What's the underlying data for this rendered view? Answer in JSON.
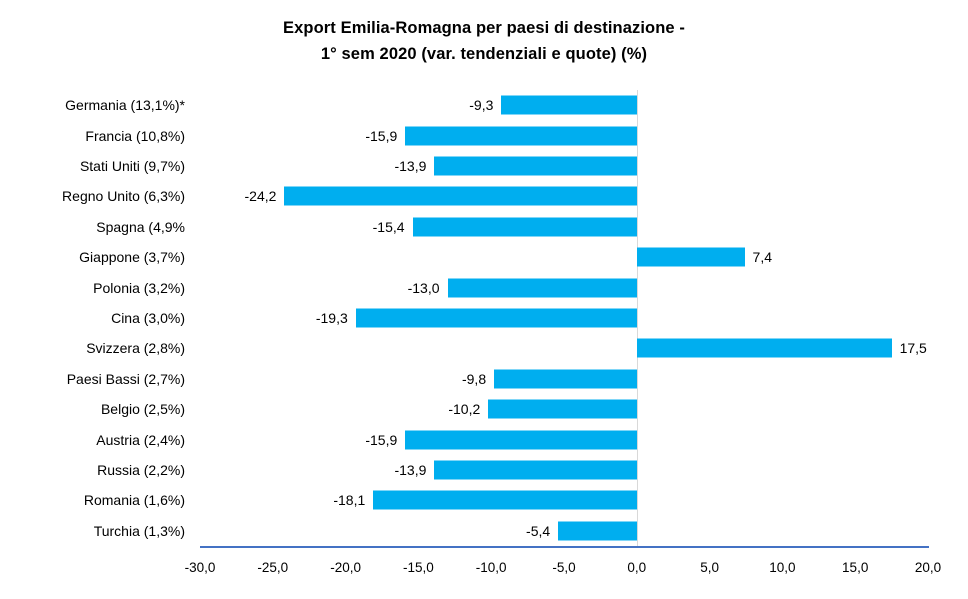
{
  "title": {
    "line1": "Export Emilia-Romagna per paesi di destinazione -",
    "line2": "1° sem 2020 (var. tendenziali e quote) (%)"
  },
  "colors": {
    "bar": "#00AEEF",
    "axis_line": "#4472C4",
    "zero_line": "#D9D9D9",
    "text": "#000000"
  },
  "chart_data": {
    "type": "bar",
    "orientation": "horizontal",
    "title": "Export Emilia-Romagna per paesi di destinazione - 1° sem 2020 (var. tendenziali e quote) (%)",
    "categories": [
      "Germania (13,1%)*",
      "Francia (10,8%)",
      "Stati Uniti (9,7%)",
      "Regno Unito (6,3%)",
      "Spagna (4,9%",
      "Giappone (3,7%)",
      "Polonia (3,2%)",
      "Cina (3,0%)",
      "Svizzera (2,8%)",
      "Paesi Bassi (2,7%)",
      "Belgio (2,5%)",
      "Austria (2,4%)",
      "Russia (2,2%)",
      "Romania (1,6%)",
      "Turchia (1,3%)"
    ],
    "shares_pct": [
      13.1,
      10.8,
      9.7,
      6.3,
      4.9,
      3.7,
      3.2,
      3.0,
      2.8,
      2.7,
      2.5,
      2.4,
      2.2,
      1.6,
      1.3
    ],
    "values": [
      -9.3,
      -15.9,
      -13.9,
      -24.2,
      -15.4,
      7.4,
      -13.0,
      -19.3,
      17.5,
      -9.8,
      -10.2,
      -15.9,
      -13.9,
      -18.1,
      -5.4
    ],
    "value_labels": [
      "-9,3",
      "-15,9",
      "-13,9",
      "-24,2",
      "-15,4",
      "7,4",
      "-13,0",
      "-19,3",
      "17,5",
      "-9,8",
      "-10,2",
      "-15,9",
      "-13,9",
      "-18,1",
      "-5,4"
    ],
    "x_ticks": [
      "-30,0",
      "-25,0",
      "-20,0",
      "-15,0",
      "-10,0",
      "-5,0",
      "0,0",
      "5,0",
      "10,0",
      "15,0",
      "20,0"
    ],
    "xlim": [
      -30,
      20
    ],
    "xlabel": "",
    "ylabel": "",
    "grid": false,
    "legend": false
  }
}
